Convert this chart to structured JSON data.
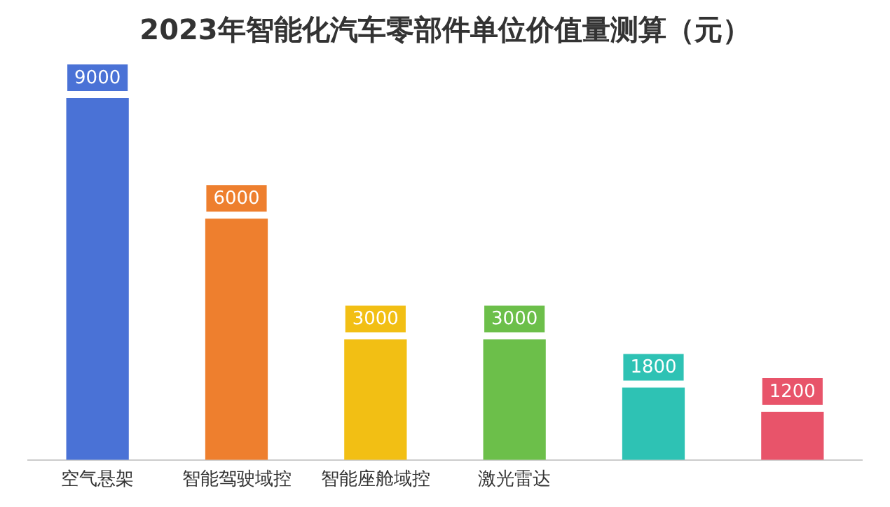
{
  "chart_data": {
    "type": "bar",
    "title": "2023年智能化汽车零部件单位价值量测算（元）",
    "categories": [
      "空气悬架",
      "智能驾驶域控",
      "智能座舱域控",
      "激光雷达",
      null,
      null
    ],
    "values": [
      9000,
      6000,
      3000,
      3000,
      1800,
      1200
    ],
    "colors": [
      "#4a72d6",
      "#ee7f2e",
      "#f2bf14",
      "#6cbf4a",
      "#2ec2b4",
      "#e8546a"
    ],
    "data_labels": true,
    "grid": false,
    "legend": false
  }
}
